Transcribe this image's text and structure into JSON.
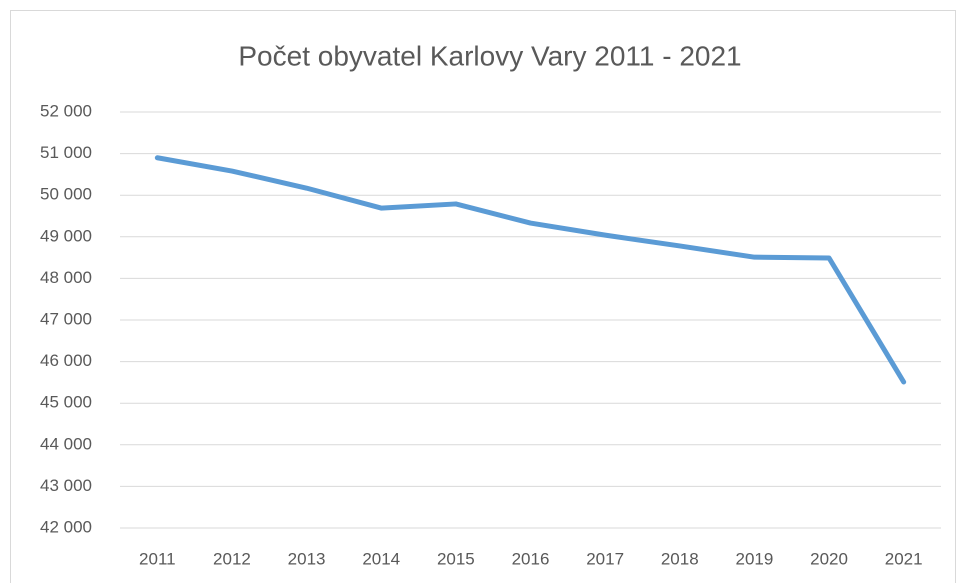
{
  "chart_data": {
    "type": "line",
    "title": "Počet obyvatel Karlovy Vary 2011 - 2021",
    "categories": [
      "2011",
      "2012",
      "2013",
      "2014",
      "2015",
      "2016",
      "2017",
      "2018",
      "2019",
      "2020",
      "2021"
    ],
    "series": [
      {
        "name": "Počet obyvatel",
        "color": "#5b9bd5",
        "values": [
          50900,
          50580,
          50170,
          49690,
          49790,
          49330,
          49040,
          48780,
          48510,
          48490,
          45510
        ]
      }
    ],
    "ylim": [
      42000,
      52000
    ],
    "yticks": [
      {
        "value": 42000,
        "label": "42 000"
      },
      {
        "value": 43000,
        "label": "43 000"
      },
      {
        "value": 44000,
        "label": "44 000"
      },
      {
        "value": 45000,
        "label": "45 000"
      },
      {
        "value": 46000,
        "label": "46 000"
      },
      {
        "value": 47000,
        "label": "47 000"
      },
      {
        "value": 48000,
        "label": "48 000"
      },
      {
        "value": 49000,
        "label": "49 000"
      },
      {
        "value": 50000,
        "label": "50 000"
      },
      {
        "value": 51000,
        "label": "51 000"
      },
      {
        "value": 52000,
        "label": "52 000"
      }
    ],
    "grid": true
  }
}
